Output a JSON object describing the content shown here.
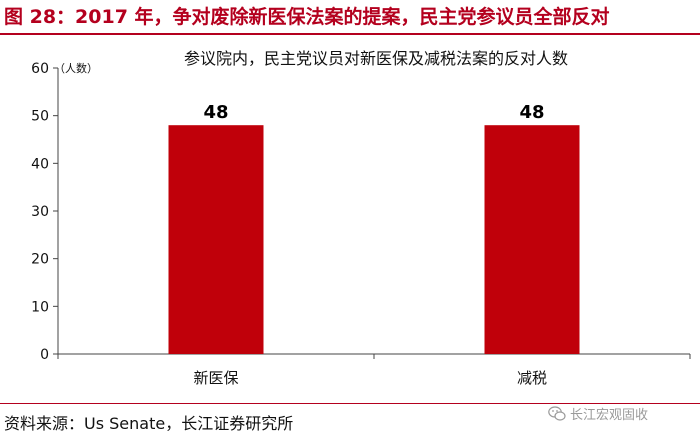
{
  "figure": {
    "title": "图 28：2017 年，争对废除新医保法案的提案，民主党参议员全部反对",
    "source": "资料来源：Us Senate，长江证券研究所",
    "watermark_text": "长江宏观固收",
    "watermark_icon": "wechat-icon",
    "accent_color": "#b4001e"
  },
  "chart_data": {
    "type": "bar",
    "title": "参议院内，民主党议员对新医保及减税法案的反对人数",
    "ylabel": "（人数）",
    "xlabel": "",
    "categories": [
      "新医保",
      "减税"
    ],
    "values": [
      48,
      48
    ],
    "yticks": [
      0,
      10,
      20,
      30,
      40,
      50,
      60
    ],
    "ylim": [
      0,
      60
    ],
    "bar_color": "#c0000a",
    "grid": false,
    "legend": "none",
    "data_labels": true
  }
}
